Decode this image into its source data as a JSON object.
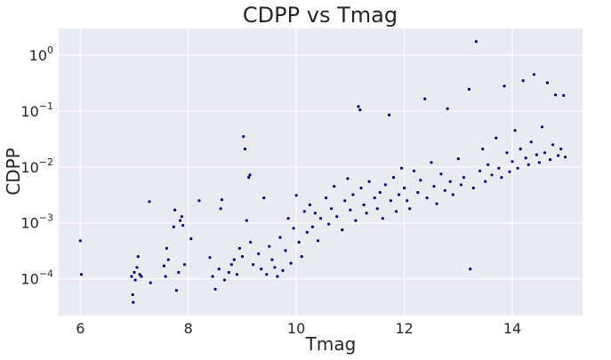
{
  "chart_data": {
    "type": "scatter",
    "title": "CDPP vs Tmag",
    "xlabel": "Tmag",
    "ylabel": "CDPP",
    "xlim": [
      5.6,
      15.3
    ],
    "ylim": [
      2.2e-05,
      3.0
    ],
    "yscale": "log",
    "grid": true,
    "background": "#eaeaf2",
    "marker_color": "#000080",
    "x_ticks": [
      {
        "value": 6,
        "label": "6"
      },
      {
        "value": 8,
        "label": "8"
      },
      {
        "value": 10,
        "label": "10"
      },
      {
        "value": 12,
        "label": "12"
      },
      {
        "value": 14,
        "label": "14"
      }
    ],
    "y_ticks": [
      {
        "value": 0.0001,
        "base": "10",
        "exp": "−4"
      },
      {
        "value": 0.001,
        "base": "10",
        "exp": "−3"
      },
      {
        "value": 0.01,
        "base": "10",
        "exp": "−2"
      },
      {
        "value": 0.1,
        "base": "10",
        "exp": "−1"
      },
      {
        "value": 1,
        "base": "10",
        "exp": "0"
      }
    ],
    "points": [
      [
        6.0,
        0.00048
      ],
      [
        6.02,
        0.00012
      ],
      [
        6.95,
        0.00011
      ],
      [
        6.97,
        5.2e-05
      ],
      [
        6.98,
        3.8e-05
      ],
      [
        7.0,
        0.00013
      ],
      [
        7.02,
        9.5e-05
      ],
      [
        7.05,
        0.00016
      ],
      [
        7.07,
        0.00025
      ],
      [
        7.1,
        0.00012
      ],
      [
        7.13,
        0.00011
      ],
      [
        7.28,
        0.0024
      ],
      [
        7.3,
        8.5e-05
      ],
      [
        7.55,
        0.00017
      ],
      [
        7.58,
        0.00011
      ],
      [
        7.6,
        0.00035
      ],
      [
        7.63,
        0.00022
      ],
      [
        7.73,
        0.00085
      ],
      [
        7.75,
        0.0017
      ],
      [
        7.78,
        6.2e-05
      ],
      [
        7.82,
        0.00013
      ],
      [
        7.85,
        0.0011
      ],
      [
        7.88,
        0.0013
      ],
      [
        7.9,
        0.0009
      ],
      [
        7.93,
        0.00018
      ],
      [
        8.05,
        0.00052
      ],
      [
        8.2,
        0.0025
      ],
      [
        8.4,
        0.00024
      ],
      [
        8.45,
        0.00011
      ],
      [
        8.5,
        6.5e-05
      ],
      [
        8.57,
        0.00015
      ],
      [
        8.6,
        0.0018
      ],
      [
        8.62,
        0.0026
      ],
      [
        8.67,
        9.5e-05
      ],
      [
        8.75,
        0.00013
      ],
      [
        8.8,
        0.00018
      ],
      [
        8.85,
        0.00022
      ],
      [
        8.9,
        0.00012
      ],
      [
        8.95,
        0.00035
      ],
      [
        9.0,
        0.00025
      ],
      [
        9.02,
        0.035
      ],
      [
        9.05,
        0.021
      ],
      [
        9.08,
        0.0011
      ],
      [
        9.12,
        0.0065
      ],
      [
        9.14,
        0.0072
      ],
      [
        9.15,
        0.00045
      ],
      [
        9.2,
        0.00018
      ],
      [
        9.3,
        0.00028
      ],
      [
        9.35,
        0.00015
      ],
      [
        9.4,
        0.0028
      ],
      [
        9.45,
        0.00012
      ],
      [
        9.5,
        0.00038
      ],
      [
        9.55,
        0.00022
      ],
      [
        9.6,
        0.00016
      ],
      [
        9.65,
        0.00011
      ],
      [
        9.7,
        0.00055
      ],
      [
        9.75,
        0.00014
      ],
      [
        9.8,
        0.00032
      ],
      [
        9.85,
        0.0012
      ],
      [
        9.9,
        0.00019
      ],
      [
        9.95,
        0.0008
      ],
      [
        10.0,
        0.0031
      ],
      [
        10.05,
        0.00045
      ],
      [
        10.1,
        0.00025
      ],
      [
        10.15,
        0.0016
      ],
      [
        10.2,
        0.00068
      ],
      [
        10.25,
        0.0021
      ],
      [
        10.3,
        0.00085
      ],
      [
        10.35,
        0.0015
      ],
      [
        10.4,
        0.00048
      ],
      [
        10.45,
        0.0012
      ],
      [
        10.55,
        0.0028
      ],
      [
        10.6,
        0.00095
      ],
      [
        10.65,
        0.0018
      ],
      [
        10.7,
        0.0045
      ],
      [
        10.75,
        0.0013
      ],
      [
        10.85,
        0.00075
      ],
      [
        10.9,
        0.0025
      ],
      [
        10.95,
        0.0062
      ],
      [
        11.0,
        0.0017
      ],
      [
        11.05,
        0.0032
      ],
      [
        11.1,
        0.0011
      ],
      [
        11.15,
        0.12
      ],
      [
        11.18,
        0.105
      ],
      [
        11.2,
        0.0042
      ],
      [
        11.25,
        0.0021
      ],
      [
        11.3,
        0.0015
      ],
      [
        11.35,
        0.0055
      ],
      [
        11.45,
        0.0028
      ],
      [
        11.5,
        0.0018
      ],
      [
        11.55,
        0.0035
      ],
      [
        11.6,
        0.0012
      ],
      [
        11.65,
        0.0048
      ],
      [
        11.72,
        0.085
      ],
      [
        11.75,
        0.0025
      ],
      [
        11.8,
        0.0065
      ],
      [
        11.85,
        0.0016
      ],
      [
        11.9,
        0.0032
      ],
      [
        11.95,
        0.0095
      ],
      [
        12.0,
        0.0042
      ],
      [
        12.05,
        0.0025
      ],
      [
        12.1,
        0.0018
      ],
      [
        12.18,
        0.0085
      ],
      [
        12.25,
        0.0035
      ],
      [
        12.3,
        0.0058
      ],
      [
        12.38,
        0.165
      ],
      [
        12.42,
        0.0028
      ],
      [
        12.5,
        0.012
      ],
      [
        12.55,
        0.0045
      ],
      [
        12.6,
        0.0022
      ],
      [
        12.68,
        0.0075
      ],
      [
        12.75,
        0.0038
      ],
      [
        12.8,
        0.11
      ],
      [
        12.85,
        0.0055
      ],
      [
        12.9,
        0.0032
      ],
      [
        13.0,
        0.014
      ],
      [
        13.05,
        0.0048
      ],
      [
        13.1,
        0.0065
      ],
      [
        13.2,
        0.245
      ],
      [
        13.22,
        0.00015
      ],
      [
        13.28,
        0.0042
      ],
      [
        13.33,
        1.75
      ],
      [
        13.4,
        0.0085
      ],
      [
        13.45,
        0.021
      ],
      [
        13.5,
        0.0055
      ],
      [
        13.55,
        0.011
      ],
      [
        13.62,
        0.0072
      ],
      [
        13.7,
        0.033
      ],
      [
        13.75,
        0.0095
      ],
      [
        13.8,
        0.0065
      ],
      [
        13.85,
        0.28
      ],
      [
        13.9,
        0.018
      ],
      [
        13.95,
        0.0082
      ],
      [
        14.0,
        0.0125
      ],
      [
        14.05,
        0.045
      ],
      [
        14.1,
        0.0095
      ],
      [
        14.15,
        0.021
      ],
      [
        14.2,
        0.35
      ],
      [
        14.25,
        0.0145
      ],
      [
        14.3,
        0.011
      ],
      [
        14.35,
        0.028
      ],
      [
        14.4,
        0.45
      ],
      [
        14.45,
        0.0165
      ],
      [
        14.5,
        0.012
      ],
      [
        14.55,
        0.052
      ],
      [
        14.6,
        0.018
      ],
      [
        14.65,
        0.32
      ],
      [
        14.7,
        0.0135
      ],
      [
        14.75,
        0.025
      ],
      [
        14.8,
        0.195
      ],
      [
        14.85,
        0.016
      ],
      [
        14.9,
        0.021
      ],
      [
        14.95,
        0.19
      ],
      [
        14.98,
        0.015
      ]
    ]
  }
}
